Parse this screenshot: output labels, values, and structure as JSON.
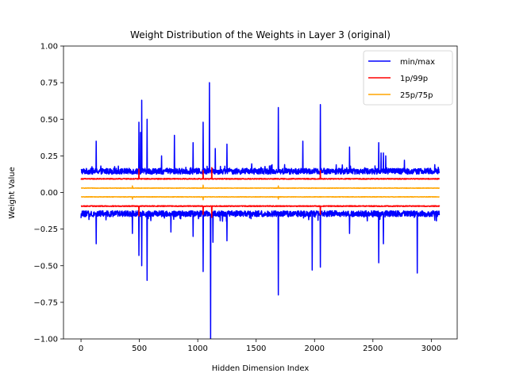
{
  "chart_data": {
    "type": "line",
    "title": "Weight Distribution of the Weights in Layer 3 (original)",
    "xlabel": "Hidden Dimension Index",
    "ylabel": "Weight Value",
    "xlim": [
      -150,
      3222
    ],
    "ylim": [
      -1.0,
      1.0
    ],
    "xticks": [
      0,
      500,
      1000,
      1500,
      2000,
      2500,
      3000
    ],
    "yticks": [
      -1.0,
      -0.75,
      -0.5,
      -0.25,
      0.0,
      0.25,
      0.5,
      0.75,
      1.0
    ],
    "xtick_labels": [
      "0",
      "500",
      "1000",
      "1500",
      "2000",
      "2500",
      "3000"
    ],
    "ytick_labels": [
      "−1.00",
      "−0.75",
      "−0.50",
      "−0.25",
      "0.00",
      "0.25",
      "0.50",
      "0.75",
      "1.00"
    ],
    "x_range": [
      0,
      3071
    ],
    "grid": false,
    "legend_position": "top-right",
    "series": [
      {
        "name": "min/max",
        "color": "#0000ff",
        "baseline_max": 0.145,
        "baseline_min": -0.145,
        "spikes_max": [
          [
            130,
            0.35
          ],
          [
            320,
            0.18
          ],
          [
            495,
            0.48
          ],
          [
            510,
            0.41
          ],
          [
            520,
            0.63
          ],
          [
            565,
            0.5
          ],
          [
            690,
            0.25
          ],
          [
            800,
            0.39
          ],
          [
            960,
            0.34
          ],
          [
            1045,
            0.48
          ],
          [
            1100,
            0.75
          ],
          [
            1150,
            0.3
          ],
          [
            1250,
            0.33
          ],
          [
            1690,
            0.58
          ],
          [
            1900,
            0.35
          ],
          [
            2050,
            0.6
          ],
          [
            2300,
            0.31
          ],
          [
            2550,
            0.34
          ],
          [
            2570,
            0.27
          ],
          [
            2590,
            0.27
          ],
          [
            2610,
            0.25
          ],
          [
            2770,
            0.22
          ],
          [
            3030,
            0.19
          ]
        ],
        "spikes_min": [
          [
            130,
            -0.35
          ],
          [
            440,
            -0.28
          ],
          [
            495,
            -0.43
          ],
          [
            520,
            -0.5
          ],
          [
            565,
            -0.6
          ],
          [
            770,
            -0.27
          ],
          [
            960,
            -0.3
          ],
          [
            1045,
            -0.54
          ],
          [
            1110,
            -1.0
          ],
          [
            1130,
            -0.34
          ],
          [
            1250,
            -0.33
          ],
          [
            1690,
            -0.7
          ],
          [
            1980,
            -0.53
          ],
          [
            2050,
            -0.51
          ],
          [
            2300,
            -0.28
          ],
          [
            2550,
            -0.48
          ],
          [
            2590,
            -0.35
          ],
          [
            2880,
            -0.55
          ],
          [
            3030,
            -0.19
          ]
        ]
      },
      {
        "name": "1p/99p",
        "color": "#ff0000",
        "baseline_max": 0.093,
        "baseline_min": -0.093,
        "spikes_max": [
          [
            495,
            0.16
          ],
          [
            1045,
            0.15
          ],
          [
            1120,
            0.17
          ],
          [
            2050,
            0.15
          ]
        ],
        "spikes_min": [
          [
            495,
            -0.16
          ],
          [
            1045,
            -0.15
          ],
          [
            1120,
            -0.17
          ],
          [
            2050,
            -0.15
          ]
        ]
      },
      {
        "name": "25p/75p",
        "color": "#ffa500",
        "baseline_max": 0.03,
        "baseline_min": -0.03,
        "spikes_max": [
          [
            440,
            0.045
          ],
          [
            1045,
            0.05
          ],
          [
            1690,
            0.045
          ]
        ],
        "spikes_min": [
          [
            440,
            -0.045
          ],
          [
            1045,
            -0.05
          ],
          [
            1690,
            -0.045
          ]
        ]
      }
    ]
  }
}
